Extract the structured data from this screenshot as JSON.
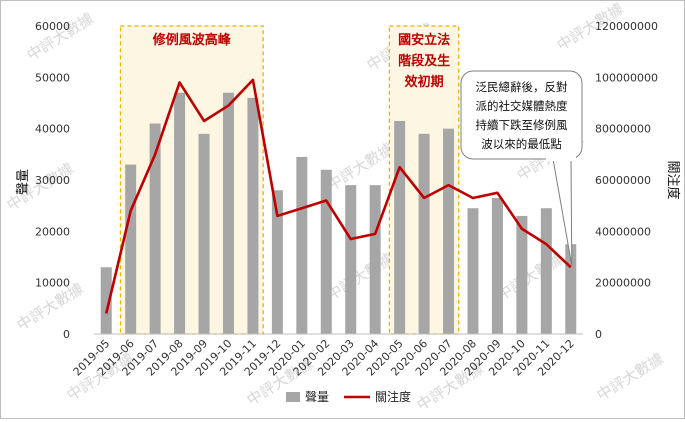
{
  "chart_data": {
    "type": "bar+line",
    "categories": [
      "2019-05",
      "2019-06",
      "2019-07",
      "2019-08",
      "2019-09",
      "2019-10",
      "2019-11",
      "2019-12",
      "2020-01",
      "2020-02",
      "2020-03",
      "2020-04",
      "2020-05",
      "2020-06",
      "2020-07",
      "2020-08",
      "2020-09",
      "2020-10",
      "2020-11",
      "2020-12"
    ],
    "series": [
      {
        "name": "聲量",
        "axis": "left",
        "kind": "bar",
        "color": "#a6a6a6",
        "values": [
          13000,
          33000,
          41000,
          47000,
          39000,
          47000,
          46000,
          28000,
          34500,
          32000,
          29000,
          29000,
          41500,
          39000,
          40000,
          24500,
          26500,
          23000,
          24500,
          17500
        ]
      },
      {
        "name": "關注度",
        "axis": "right",
        "kind": "line",
        "color": "#c00000",
        "values": [
          8000000,
          48000000,
          70000000,
          98000000,
          83000000,
          89000000,
          99000000,
          46000000,
          49000000,
          52000000,
          37000000,
          39000000,
          65000000,
          53000000,
          58000000,
          53000000,
          55000000,
          41000000,
          35000000,
          26000000
        ]
      }
    ],
    "ylabel_left": "聲量",
    "ylabel_right": "關注度",
    "ylim_left": [
      0,
      60000
    ],
    "ylim_right": [
      0,
      120000000
    ],
    "yticks_left": [
      "0",
      "10000",
      "20000",
      "30000",
      "40000",
      "50000",
      "60000"
    ],
    "yticks_right": [
      "0",
      "20000000",
      "40000000",
      "60000000",
      "80000000",
      "100000000",
      "120000000"
    ],
    "legend_position": "bottom",
    "highlight_bands": [
      {
        "from": 1,
        "to": 6,
        "label": [
          "修例風波高峰"
        ]
      },
      {
        "from": 12,
        "to": 14,
        "label": [
          "國安立法",
          "階段及生",
          "效初期"
        ]
      }
    ],
    "callout": {
      "lines": [
        "泛民總辭後，反對",
        "派的社交媒體熱度",
        "持續下跌至修例風",
        "波以來的最低點"
      ],
      "points_to_index": 19
    },
    "watermark": "中評大數據"
  }
}
